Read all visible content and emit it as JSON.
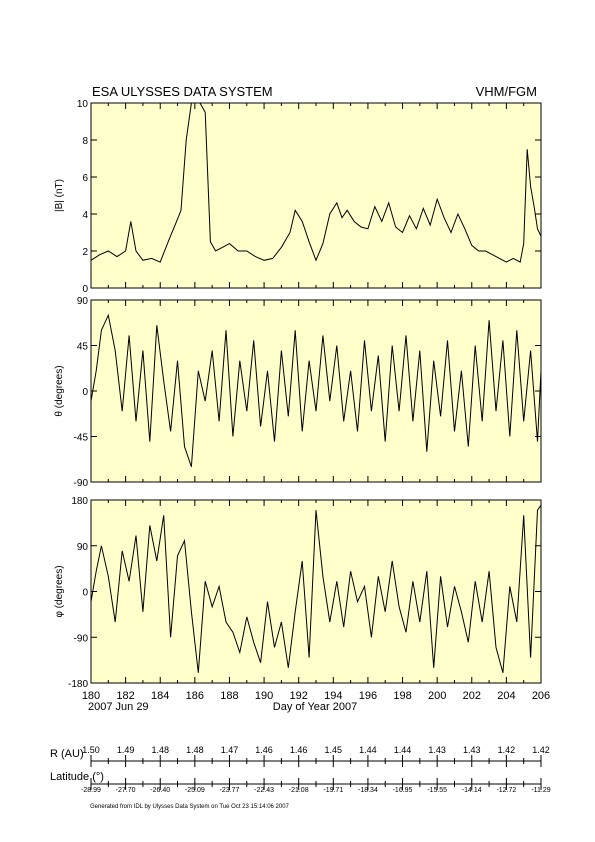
{
  "header": {
    "left_title": "ESA ULYSSES DATA SYSTEM",
    "right_title": "VHM/FGM"
  },
  "colors": {
    "panel_bg": "#ffffcc",
    "line": "#000000"
  },
  "chart_data": [
    {
      "type": "line",
      "ylabel": "|B| (nT)",
      "ylim": [
        0,
        10
      ],
      "yticks": [
        "0",
        "2",
        "4",
        "6",
        "8",
        "10"
      ],
      "xlim": [
        180,
        206
      ],
      "x": [
        180,
        180.5,
        181,
        181.5,
        182,
        182.3,
        182.6,
        183,
        183.5,
        184,
        184.5,
        184.9,
        185.2,
        185.5,
        185.8,
        186.0,
        186.3,
        186.6,
        186.9,
        187.2,
        187.6,
        188,
        188.5,
        189,
        189.5,
        190,
        190.5,
        191,
        191.5,
        191.8,
        192.2,
        192.6,
        193,
        193.4,
        193.8,
        194.2,
        194.5,
        194.8,
        195.2,
        195.6,
        196,
        196.4,
        196.8,
        197.2,
        197.6,
        198,
        198.4,
        198.8,
        199.2,
        199.6,
        200,
        200.4,
        200.8,
        201.2,
        201.6,
        202,
        202.4,
        202.8,
        203.2,
        203.6,
        204,
        204.4,
        204.8,
        205.0,
        205.2,
        205.4,
        205.6,
        205.8,
        206
      ],
      "series": [
        {
          "values": [
            1.5,
            1.8,
            2.0,
            1.7,
            2.0,
            3.6,
            2.0,
            1.5,
            1.6,
            1.4,
            2.6,
            3.5,
            4.2,
            8.0,
            10,
            10,
            10,
            9.5,
            2.5,
            2.0,
            2.2,
            2.4,
            2.0,
            2.0,
            1.7,
            1.5,
            1.6,
            2.2,
            3.0,
            4.2,
            3.6,
            2.5,
            1.5,
            2.4,
            4.0,
            4.6,
            3.8,
            4.2,
            3.6,
            3.3,
            3.2,
            4.4,
            3.6,
            4.6,
            3.3,
            3.0,
            3.9,
            3.2,
            4.3,
            3.4,
            4.8,
            3.8,
            3.0,
            4.0,
            3.2,
            2.3,
            2.0,
            2.0,
            1.8,
            1.6,
            1.4,
            1.6,
            1.4,
            2.4,
            7.5,
            5.5,
            4.4,
            3.2,
            2.8
          ]
        }
      ]
    },
    {
      "type": "line",
      "ylabel": "θ (degrees)",
      "ylim": [
        -90,
        90
      ],
      "yticks": [
        "-90",
        "-45",
        "0",
        "45",
        "90"
      ],
      "xlim": [
        180,
        206
      ],
      "x": [
        180,
        180.3,
        180.6,
        181,
        181.4,
        181.8,
        182.2,
        182.6,
        183,
        183.4,
        183.8,
        184.2,
        184.6,
        185,
        185.4,
        185.8,
        186.2,
        186.6,
        187,
        187.4,
        187.8,
        188.2,
        188.6,
        189,
        189.4,
        189.8,
        190.2,
        190.6,
        191,
        191.4,
        191.8,
        192.2,
        192.6,
        193,
        193.4,
        193.8,
        194.2,
        194.6,
        195,
        195.4,
        195.8,
        196.2,
        196.6,
        197,
        197.4,
        197.8,
        198.2,
        198.6,
        199,
        199.4,
        199.8,
        200.2,
        200.6,
        201,
        201.4,
        201.8,
        202.2,
        202.6,
        203,
        203.4,
        203.8,
        204.2,
        204.6,
        205,
        205.4,
        205.8,
        206
      ],
      "series": [
        {
          "values": [
            -10,
            20,
            60,
            75,
            40,
            -20,
            55,
            -30,
            40,
            -50,
            65,
            10,
            -40,
            30,
            -55,
            -75,
            20,
            -10,
            40,
            -30,
            60,
            -45,
            30,
            -20,
            50,
            -35,
            20,
            -50,
            40,
            -25,
            60,
            -40,
            30,
            -20,
            55,
            -10,
            45,
            -30,
            20,
            -40,
            50,
            -20,
            35,
            -50,
            45,
            -20,
            55,
            -30,
            40,
            -60,
            30,
            -25,
            50,
            -40,
            20,
            -55,
            45,
            -30,
            70,
            -20,
            50,
            -45,
            60,
            -30,
            40,
            -50,
            20
          ]
        }
      ]
    },
    {
      "type": "line",
      "ylabel": "φ (degrees)",
      "ylim": [
        -180,
        180
      ],
      "yticks": [
        "-180",
        "-90",
        "0",
        "90",
        "180"
      ],
      "xlim": [
        180,
        206
      ],
      "xticks": [
        "180",
        "182",
        "184",
        "186",
        "188",
        "190",
        "192",
        "194",
        "196",
        "198",
        "200",
        "202",
        "204",
        "206"
      ],
      "xlabel": "Day of Year 2007",
      "date_label": "2007 Jun 29",
      "x": [
        180,
        180.3,
        180.6,
        181,
        181.4,
        181.8,
        182.2,
        182.6,
        183,
        183.4,
        183.8,
        184.2,
        184.6,
        185,
        185.4,
        185.8,
        186.2,
        186.6,
        187,
        187.4,
        187.8,
        188.2,
        188.6,
        189,
        189.4,
        189.8,
        190.2,
        190.6,
        191,
        191.4,
        191.8,
        192.2,
        192.6,
        193,
        193.4,
        193.8,
        194.2,
        194.6,
        195,
        195.4,
        195.8,
        196.2,
        196.6,
        197,
        197.4,
        197.8,
        198.2,
        198.6,
        199,
        199.4,
        199.8,
        200.2,
        200.6,
        201,
        201.4,
        201.8,
        202.2,
        202.6,
        203,
        203.4,
        203.8,
        204.2,
        204.6,
        205,
        205.4,
        205.8,
        206
      ],
      "series": [
        {
          "values": [
            -20,
            40,
            90,
            30,
            -60,
            80,
            20,
            110,
            -40,
            130,
            60,
            150,
            -90,
            70,
            100,
            -40,
            -160,
            20,
            -30,
            10,
            -60,
            -80,
            -120,
            -50,
            -100,
            -140,
            -20,
            -110,
            -60,
            -150,
            -40,
            60,
            -130,
            160,
            30,
            -60,
            20,
            -70,
            40,
            -20,
            10,
            -90,
            30,
            -40,
            60,
            -30,
            -80,
            20,
            -60,
            40,
            -150,
            30,
            -70,
            10,
            -40,
            -100,
            20,
            -60,
            40,
            -110,
            -160,
            10,
            -60,
            150,
            -130,
            160,
            170
          ]
        }
      ]
    },
    {
      "type": "table",
      "title": "R (AU)",
      "values": [
        "1.50",
        "1.49",
        "1.48",
        "1.48",
        "1.47",
        "1.46",
        "1.46",
        "1.45",
        "1.44",
        "1.44",
        "1.43",
        "1.43",
        "1.42",
        "1.42"
      ]
    },
    {
      "type": "table",
      "title": "Latitude (°)",
      "values": [
        "-28.99",
        "-27.70",
        "-26.40",
        "-25.09",
        "-23.77",
        "-22.43",
        "-21.08",
        "-19.71",
        "-18.34",
        "-16.95",
        "-15.55",
        "-14.14",
        "-12.72",
        "-11.29"
      ]
    }
  ],
  "footer": {
    "generated": "Generated from IDL by Ulysses Data System on Tue Oct 23 15:14:06 2007"
  }
}
